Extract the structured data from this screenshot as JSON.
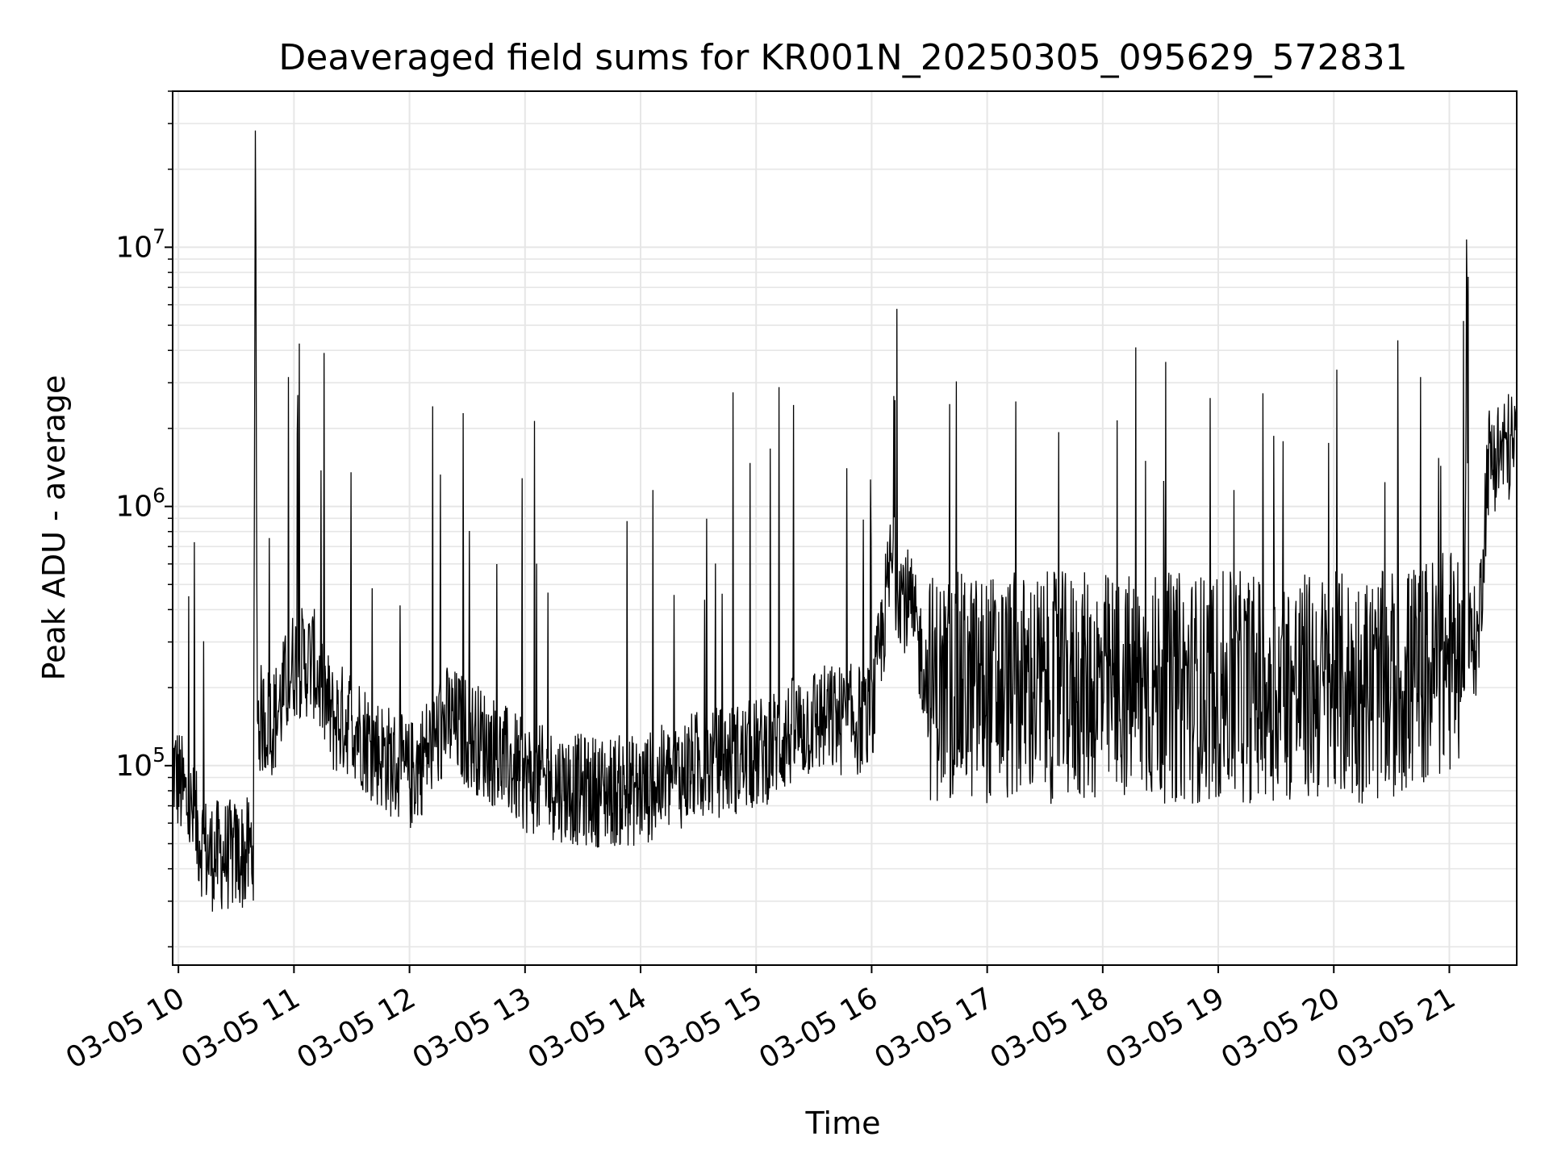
{
  "chart_data": {
    "type": "line",
    "title": "Deaveraged field sums for KR001N_20250305_095629_572831",
    "xlabel": "Time",
    "ylabel": "Peak ADU - average",
    "yscale": "log",
    "grid": true,
    "xlim": [
      "2025-03-05 09:57",
      "2025-03-05 21:35"
    ],
    "ylim": [
      17000,
      40000000
    ],
    "x_ticks": [
      "03-05 10",
      "03-05 11",
      "03-05 12",
      "03-05 13",
      "03-05 14",
      "03-05 15",
      "03-05 16",
      "03-05 17",
      "03-05 18",
      "03-05 19",
      "03-05 20",
      "03-05 21"
    ],
    "y_ticks": [
      {
        "base": "10",
        "exp": "5",
        "value": 100000
      },
      {
        "base": "10",
        "exp": "6",
        "value": 1000000
      },
      {
        "base": "10",
        "exp": "7",
        "value": 10000000
      }
    ],
    "line_color": "#000000",
    "series": [
      {
        "name": "",
        "x": [
          "2025-03-05 09:57",
          "2025-03-05 10:05",
          "2025-03-05 10:15",
          "2025-03-05 10:25",
          "2025-03-05 10:35",
          "2025-03-05 10:39",
          "2025-03-05 10:40",
          "2025-03-05 10:41",
          "2025-03-05 10:50",
          "2025-03-05 11:00",
          "2025-03-05 11:10",
          "2025-03-05 11:20",
          "2025-03-05 11:30",
          "2025-03-05 11:40",
          "2025-03-05 12:00",
          "2025-03-05 12:20",
          "2025-03-05 12:40",
          "2025-03-05 13:00",
          "2025-03-05 13:30",
          "2025-03-05 14:00",
          "2025-03-05 14:30",
          "2025-03-05 15:00",
          "2025-03-05 15:30",
          "2025-03-05 16:00",
          "2025-03-05 16:10",
          "2025-03-05 16:20",
          "2025-03-05 16:30",
          "2025-03-05 17:00",
          "2025-03-05 17:30",
          "2025-03-05 18:00",
          "2025-03-05 18:30",
          "2025-03-05 19:00",
          "2025-03-05 19:30",
          "2025-03-05 20:00",
          "2025-03-05 20:30",
          "2025-03-05 21:00",
          "2025-03-05 21:08",
          "2025-03-05 21:09",
          "2025-03-05 21:10",
          "2025-03-05 21:15",
          "2025-03-05 21:20",
          "2025-03-05 21:25",
          "2025-03-05 21:30",
          "2025-03-05 21:35"
        ],
        "y": [
          100000,
          70000,
          45000,
          45000,
          45000,
          50000,
          28000000,
          150000,
          150000,
          250000,
          250000,
          150000,
          150000,
          120000,
          90000,
          150000,
          120000,
          90000,
          80000,
          80000,
          100000,
          110000,
          150000,
          150000,
          600000,
          400000,
          200000,
          200000,
          200000,
          200000,
          200000,
          200000,
          200000,
          200000,
          200000,
          250000,
          300000,
          10500000,
          300000,
          300000,
          1500000,
          1600000,
          1700000,
          1700000
        ]
      }
    ]
  }
}
